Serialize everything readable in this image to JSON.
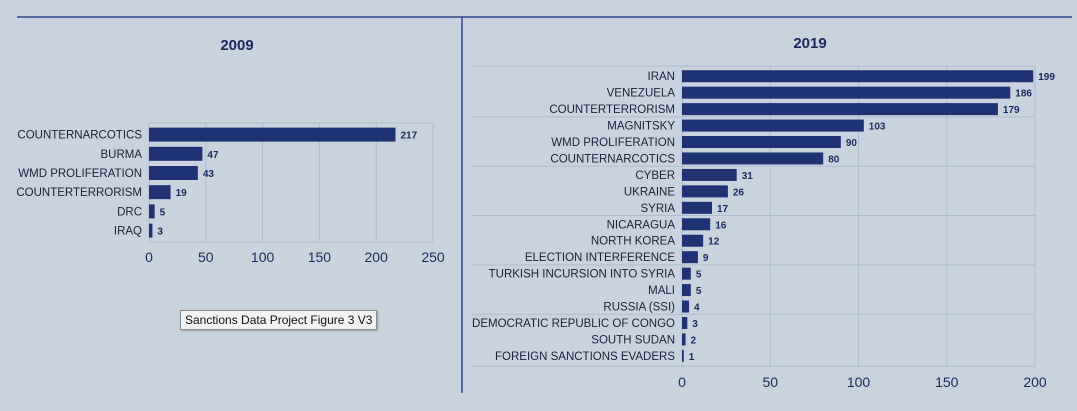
{
  "colors": {
    "background": "#c9d3dd",
    "bar": "#1f3274",
    "text": "#1a2a5e",
    "rule": "#31468c",
    "grid": "#aebdcd",
    "tick": "#1a2a5e"
  },
  "tooltip": {
    "text": "Sanctions Data Project Figure 3 V3"
  },
  "chart_data": [
    {
      "type": "bar",
      "orientation": "horizontal",
      "title": "2009",
      "categories": [
        "COUNTERNARCOTICS",
        "BURMA",
        "WMD PROLIFERATION",
        "COUNTERTERRORISM",
        "DRC",
        "IRAQ"
      ],
      "values": [
        217,
        47,
        43,
        19,
        5,
        3
      ],
      "xlim": [
        0,
        250
      ],
      "xticks": [
        0,
        50,
        100,
        150,
        200,
        250
      ],
      "data_labels": true
    },
    {
      "type": "bar",
      "orientation": "horizontal",
      "title": "2019",
      "categories": [
        "IRAN",
        "VENEZUELA",
        "COUNTERTERRORISM",
        "MAGNITSKY",
        "WMD PROLIFERATION",
        "COUNTERNARCOTICS",
        "CYBER",
        "UKRAINE",
        "SYRIA",
        "NICARAGUA",
        "NORTH KOREA",
        "ELECTION INTERFERENCE",
        "TURKISH INCURSION INTO SYRIA",
        "MALI",
        "RUSSIA (SSI)",
        "DEMOCRATIC REPUBLIC OF CONGO",
        "SOUTH SUDAN",
        "FOREIGN SANCTIONS EVADERS"
      ],
      "values": [
        199,
        186,
        179,
        103,
        90,
        80,
        31,
        26,
        17,
        16,
        12,
        9,
        5,
        5,
        4,
        3,
        2,
        1
      ],
      "xlim": [
        0,
        200
      ],
      "xticks": [
        0,
        50,
        100,
        150,
        200
      ],
      "data_labels": true
    }
  ]
}
